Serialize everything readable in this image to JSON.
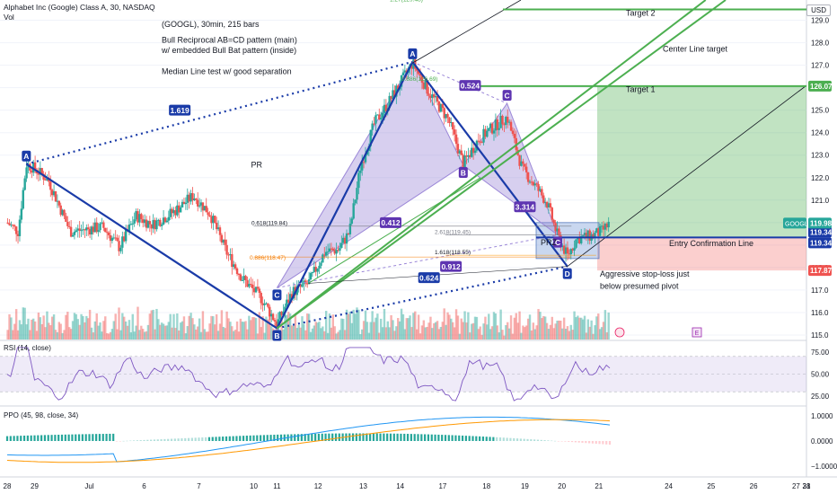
{
  "header": {
    "symbol_title": "Alphabet Inc (Google) Class A, 30, NASDAQ",
    "volume_label": "Vol",
    "currency": "USD"
  },
  "colors": {
    "bull": "#26a69a",
    "bear": "#ef5350",
    "pattern_blue": "#1a3ba8",
    "bat_fill": "#9c88d8",
    "green_line": "#4caf50",
    "orange": "#f57c00",
    "rsi_line": "#7e57c2",
    "ppo_blue": "#2196f3",
    "ppo_orange": "#ff9800"
  },
  "annotations": {
    "info_1": "(GOOGL), 30min, 215 bars",
    "info_2": "Bull Reciprocal AB=CD pattern (main)",
    "info_3": "w/ embedded Bull Bat pattern (inside)",
    "info_4": "Median Line test w/ good separation",
    "pr": "PR",
    "prz": "PRZ",
    "target2": "Target 2",
    "target1": "Target 1",
    "center_line_target": "Center Line target",
    "entry_confirmation": "Entry Confirmation Line",
    "stop_loss_1": "Aggressive stop-loss just",
    "stop_loss_2": "below presumed pivot",
    "fib_top": "1.27(129.48)",
    "fib_618_left": "0.618(119.84)",
    "fib_886_left": "0.886(118.47)",
    "fib_886_top": "0.886(126.69)",
    "fib_2618": "2.618(119.45)",
    "fib_1618": "1.618(118.55)",
    "ratio_1619": "1.619",
    "ratio_0524": "0.524",
    "ratio_0412": "0.412",
    "ratio_3314": "3.314",
    "ratio_0912": "0.912",
    "ratio_0624": "0.624",
    "earnings_flag": "E"
  },
  "points": {
    "A1": {
      "label": "A",
      "x": 0.7,
      "y": 122.6
    },
    "B1": {
      "label": "B",
      "x": 9.85,
      "y": 115.3
    },
    "C1": {
      "label": "C",
      "x": 9.85,
      "y": 117.1
    },
    "A2": {
      "label": "A",
      "x": 14.8,
      "y": 127.15
    },
    "B2": {
      "label": "B",
      "x": 16.65,
      "y": 122.55
    },
    "C2": {
      "label": "C",
      "x": 18.25,
      "y": 125.3
    },
    "Dc": {
      "label": "C",
      "x": 20.1,
      "y": 119.45
    },
    "D": {
      "label": "D",
      "x": 20.45,
      "y": 118.05
    }
  },
  "chart_data": [
    {
      "type": "candlestick",
      "title": "Alphabet Inc (Google) Class A, 30, NASDAQ",
      "price_range": [
        114.8,
        129.9
      ],
      "price_ticks": [
        115.0,
        116.0,
        117.0,
        118.0,
        119.0,
        120.0,
        121.0,
        122.0,
        123.0,
        124.0,
        125.0,
        126.0,
        127.0,
        128.0,
        129.0
      ],
      "last_price": {
        "symbol": "GOOGL",
        "value": "119.98"
      },
      "price_labels": [
        "126.07",
        "119.34",
        "119.34",
        "117.87"
      ],
      "target_levels": {
        "target2": 129.48,
        "target1": 126.07,
        "entry": 119.34,
        "stop": 117.87
      },
      "fib_levels": [
        119.84,
        118.47,
        119.45,
        118.55,
        126.69
      ],
      "x_ticks": [
        "28",
        "29",
        "Jul",
        "6",
        "7",
        "10",
        "11",
        "12",
        "13",
        "14",
        "17",
        "18",
        "19",
        "20",
        "21",
        "24",
        "25",
        "26",
        "27",
        "28",
        "31"
      ],
      "close_anchors": [
        [
          0,
          120.0
        ],
        [
          0.4,
          119.6
        ],
        [
          0.7,
          122.6
        ],
        [
          1.0,
          122.4
        ],
        [
          1.5,
          121.9
        ],
        [
          2.3,
          119.6
        ],
        [
          3.5,
          119.8
        ],
        [
          4.1,
          118.9
        ],
        [
          4.7,
          120.3
        ],
        [
          5.3,
          119.9
        ],
        [
          6.1,
          120.5
        ],
        [
          6.8,
          121.2
        ],
        [
          7.4,
          120.4
        ],
        [
          8.0,
          118.7
        ],
        [
          8.6,
          117.5
        ],
        [
          9.3,
          116.6
        ],
        [
          9.85,
          115.5
        ],
        [
          10.4,
          116.9
        ],
        [
          11.0,
          117.3
        ],
        [
          11.6,
          118.7
        ],
        [
          12.1,
          118.8
        ],
        [
          12.5,
          119.6
        ],
        [
          12.9,
          122.5
        ],
        [
          13.4,
          124.4
        ],
        [
          13.9,
          125.3
        ],
        [
          14.3,
          126.1
        ],
        [
          14.8,
          127.1
        ],
        [
          15.4,
          125.8
        ],
        [
          16.1,
          124.6
        ],
        [
          16.65,
          122.6
        ],
        [
          17.2,
          123.7
        ],
        [
          17.7,
          124.2
        ],
        [
          18.25,
          124.7
        ],
        [
          18.8,
          122.4
        ],
        [
          19.3,
          121.6
        ],
        [
          19.7,
          120.9
        ],
        [
          20.1,
          119.4
        ],
        [
          20.45,
          118.5
        ],
        [
          20.8,
          119.3
        ],
        [
          21.3,
          119.4
        ],
        [
          21.7,
          119.6
        ],
        [
          22.0,
          119.98
        ]
      ]
    },
    {
      "type": "line",
      "title": "RSI (14, close)",
      "y_ticks": [
        25.0,
        50.0,
        75.0
      ],
      "bands": [
        30,
        70
      ]
    },
    {
      "type": "histogram+line",
      "title": "PPO (45, 98, close, 34)",
      "y_ticks": [
        "1.0000",
        "0.0000",
        "−1.0000"
      ]
    }
  ]
}
